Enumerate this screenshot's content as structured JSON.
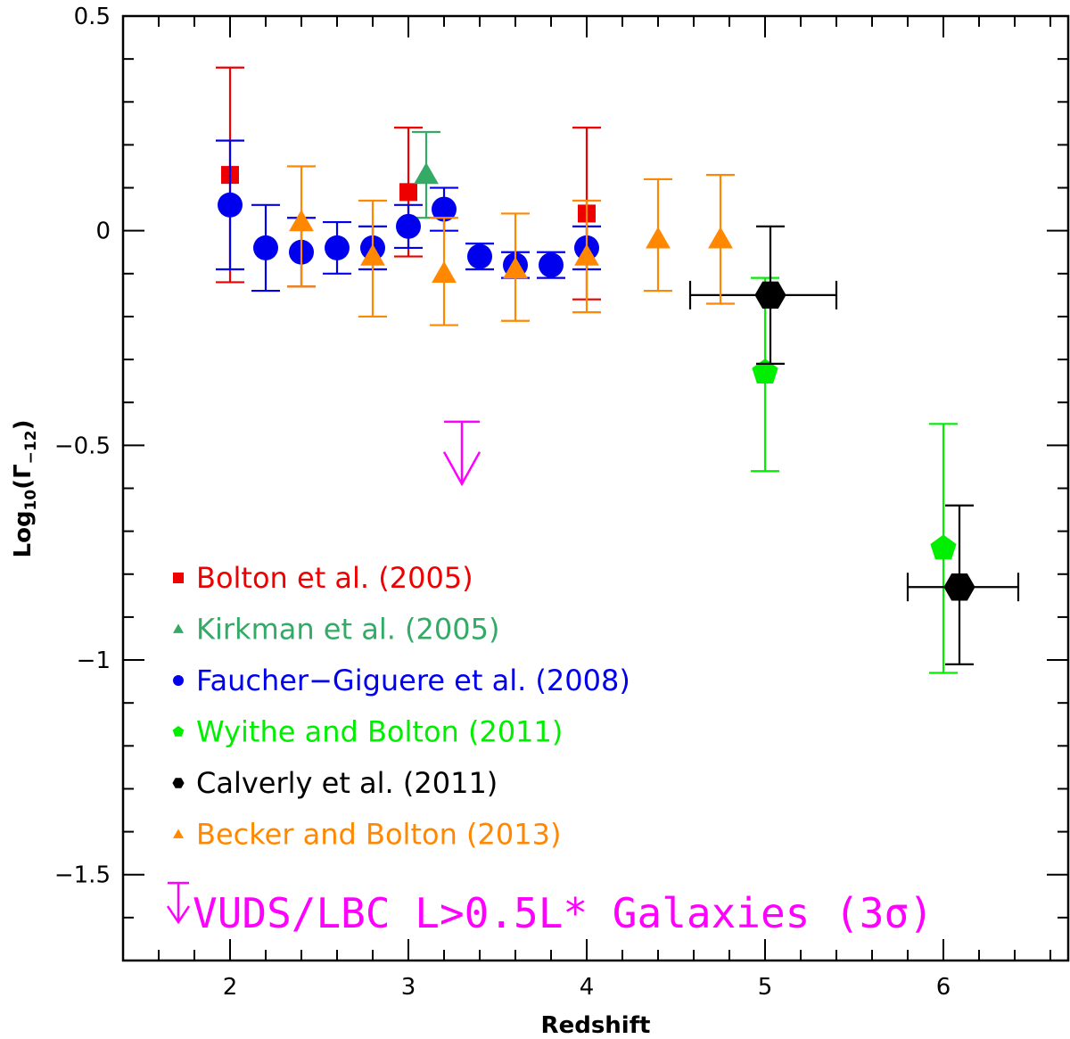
{
  "chart_data": {
    "type": "scatter",
    "xlabel": "Redshift",
    "ylabel_main": "Log",
    "ylabel_sub": "10",
    "ylabel_paren_open": "(Γ",
    "ylabel_gamma_sub": "−12",
    "ylabel_paren_close": ")",
    "xlim": [
      1.4,
      6.7
    ],
    "ylim": [
      -1.7,
      0.5
    ],
    "x_ticks": [
      {
        "value": 2,
        "label": "2"
      },
      {
        "value": 3,
        "label": "3"
      },
      {
        "value": 4,
        "label": "4"
      },
      {
        "value": 5,
        "label": "5"
      },
      {
        "value": 6,
        "label": "6"
      }
    ],
    "y_ticks": [
      {
        "value": 0.5,
        "label": "0.5"
      },
      {
        "value": 0,
        "label": "0"
      },
      {
        "value": -0.5,
        "label": "−0.5"
      },
      {
        "value": -1,
        "label": "−1"
      },
      {
        "value": -1.5,
        "label": "−1.5"
      }
    ],
    "series": [
      {
        "name": "Bolton et al. (2005)",
        "color": "#ee0000",
        "marker": "square",
        "points": [
          {
            "x": 2.0,
            "y": 0.13,
            "ylo": -0.12,
            "yhi": 0.38
          },
          {
            "x": 3.0,
            "y": 0.09,
            "ylo": -0.06,
            "yhi": 0.24
          },
          {
            "x": 4.0,
            "y": 0.04,
            "ylo": -0.16,
            "yhi": 0.24
          }
        ]
      },
      {
        "name": "Kirkman et al. (2005)",
        "color": "#33aa66",
        "marker": "triangle",
        "points": [
          {
            "x": 3.1,
            "y": 0.13,
            "ylo": 0.03,
            "yhi": 0.23
          }
        ]
      },
      {
        "name": "Faucher-Giguere et al. (2008)",
        "color": "#0000ee",
        "marker": "circle",
        "points": [
          {
            "x": 2.0,
            "y": 0.06,
            "ylo": -0.09,
            "yhi": 0.21
          },
          {
            "x": 2.2,
            "y": -0.04,
            "ylo": -0.14,
            "yhi": 0.06
          },
          {
            "x": 2.4,
            "y": -0.05,
            "ylo": -0.13,
            "yhi": 0.03
          },
          {
            "x": 2.6,
            "y": -0.04,
            "ylo": -0.1,
            "yhi": 0.02
          },
          {
            "x": 2.8,
            "y": -0.04,
            "ylo": -0.09,
            "yhi": 0.01
          },
          {
            "x": 3.0,
            "y": 0.01,
            "ylo": -0.04,
            "yhi": 0.06
          },
          {
            "x": 3.2,
            "y": 0.05,
            "ylo": 0.0,
            "yhi": 0.1
          },
          {
            "x": 3.4,
            "y": -0.06,
            "ylo": -0.09,
            "yhi": -0.03
          },
          {
            "x": 3.6,
            "y": -0.08,
            "ylo": -0.11,
            "yhi": -0.05
          },
          {
            "x": 3.8,
            "y": -0.08,
            "ylo": -0.11,
            "yhi": -0.05
          },
          {
            "x": 4.0,
            "y": -0.04,
            "ylo": -0.09,
            "yhi": 0.01
          }
        ]
      },
      {
        "name": "Wyithe and Bolton (2011)",
        "color": "#00ee00",
        "marker": "pentagon",
        "points": [
          {
            "x": 5.0,
            "y": -0.33,
            "ylo": -0.56,
            "yhi": -0.11
          },
          {
            "x": 6.0,
            "y": -0.74,
            "ylo": -1.03,
            "yhi": -0.45
          }
        ]
      },
      {
        "name": "Calverly et al. (2011)",
        "color": "#000000",
        "marker": "hexagon",
        "points": [
          {
            "x": 5.03,
            "y": -0.15,
            "ylo": -0.31,
            "yhi": 0.01,
            "xlo": 4.58,
            "xhi": 5.4
          },
          {
            "x": 6.09,
            "y": -0.83,
            "ylo": -1.01,
            "yhi": -0.64,
            "xlo": 5.8,
            "xhi": 6.42
          }
        ]
      },
      {
        "name": "Becker and Bolton (2013)",
        "color": "#ff8800",
        "marker": "triangle",
        "points": [
          {
            "x": 2.4,
            "y": 0.02,
            "ylo": -0.13,
            "yhi": 0.15
          },
          {
            "x": 2.8,
            "y": -0.06,
            "ylo": -0.2,
            "yhi": 0.07
          },
          {
            "x": 3.2,
            "y": -0.1,
            "ylo": -0.22,
            "yhi": 0.03
          },
          {
            "x": 3.6,
            "y": -0.09,
            "ylo": -0.21,
            "yhi": 0.04
          },
          {
            "x": 4.0,
            "y": -0.06,
            "ylo": -0.19,
            "yhi": 0.07
          },
          {
            "x": 4.4,
            "y": -0.02,
            "ylo": -0.14,
            "yhi": 0.12
          },
          {
            "x": 4.75,
            "y": -0.02,
            "ylo": -0.17,
            "yhi": 0.13
          }
        ]
      }
    ],
    "upper_limits": [
      {
        "name": "VUDS/LBC L>0.5L* Galaxies (3σ)",
        "color": "#ff00ff",
        "x": 3.3,
        "y": -0.445,
        "arrow_to": -0.59
      }
    ]
  },
  "legend": {
    "items": [
      {
        "text": "Bolton et al. (2005)",
        "color": "#ee0000",
        "marker": "square"
      },
      {
        "text": "Kirkman et al. (2005)",
        "color": "#33aa66",
        "marker": "triangle"
      },
      {
        "text": "Faucher−Giguere et al. (2008)",
        "color": "#0000ee",
        "marker": "circle"
      },
      {
        "text": "Wyithe and Bolton (2011)",
        "color": "#00ee00",
        "marker": "pentagon"
      },
      {
        "text": "Calverly et al. (2011)",
        "color": "#000000",
        "marker": "hexagon"
      },
      {
        "text": "Becker and Bolton (2013)",
        "color": "#ff8800",
        "marker": "triangle"
      }
    ],
    "vuds_label": "VUDS/LBC L>0.5L* Galaxies (3σ)",
    "vuds_color": "#ff00ff"
  }
}
